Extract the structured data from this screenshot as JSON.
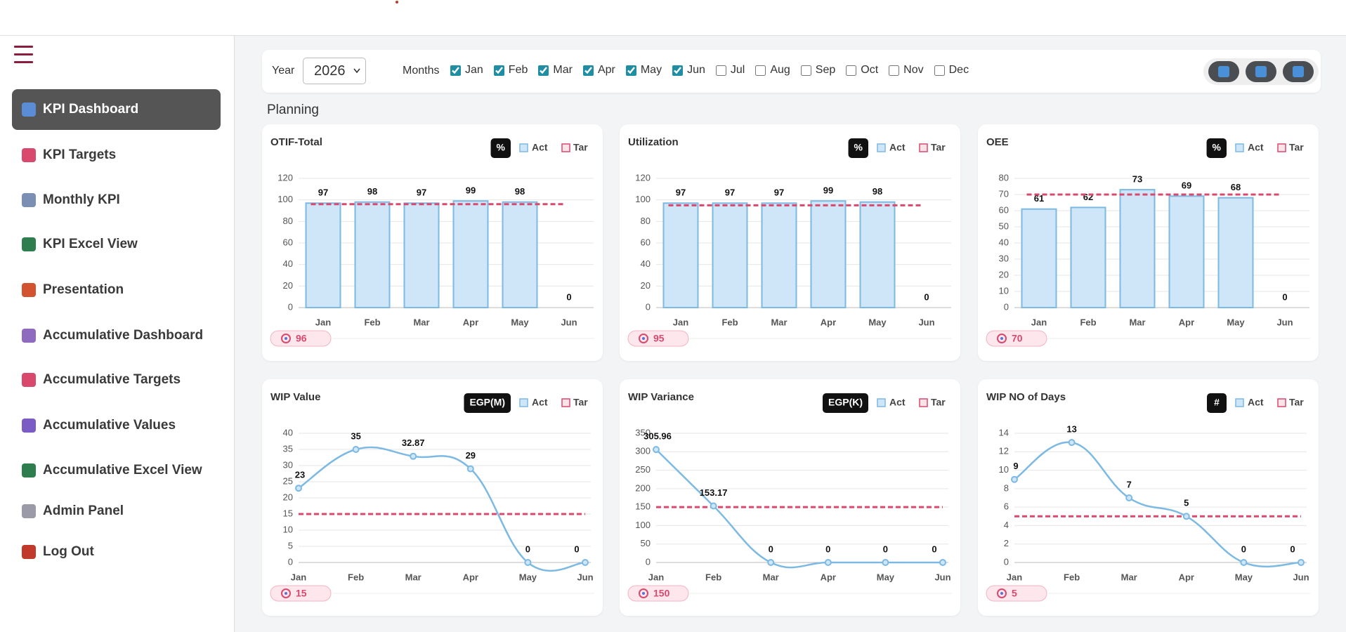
{
  "sidebar": {
    "items": [
      {
        "label": "KPI Dashboard",
        "active": true
      },
      {
        "label": "KPI Targets",
        "active": false
      },
      {
        "label": "Monthly KPI",
        "active": false
      },
      {
        "label": "KPI Excel View",
        "active": false
      },
      {
        "label": "Presentation",
        "active": false
      },
      {
        "label": "Accumulative Dashboard",
        "active": false
      },
      {
        "label": "Accumulative Targets",
        "active": false
      },
      {
        "label": "Accumulative Values",
        "active": false
      },
      {
        "label": "Accumulative Excel View",
        "active": false
      },
      {
        "label": "Admin Panel",
        "active": false
      },
      {
        "label": "Log Out",
        "active": false
      }
    ]
  },
  "filters": {
    "year_label": "Year",
    "year": "2026",
    "months_label": "Months",
    "months": [
      {
        "label": "Jan",
        "checked": true
      },
      {
        "label": "Feb",
        "checked": true
      },
      {
        "label": "Mar",
        "checked": true
      },
      {
        "label": "Apr",
        "checked": true
      },
      {
        "label": "May",
        "checked": true
      },
      {
        "label": "Jun",
        "checked": true
      },
      {
        "label": "Jul",
        "checked": false
      },
      {
        "label": "Aug",
        "checked": false
      },
      {
        "label": "Sep",
        "checked": false
      },
      {
        "label": "Oct",
        "checked": false
      },
      {
        "label": "Nov",
        "checked": false
      },
      {
        "label": "Dec",
        "checked": false
      }
    ]
  },
  "section_title": "Planning",
  "chart_data": [
    {
      "type": "bar",
      "title": "OTIF-Total",
      "unit": "%",
      "categories": [
        "Jan",
        "Feb",
        "Mar",
        "Apr",
        "May",
        "Jun"
      ],
      "series": [
        {
          "name": "Act",
          "color": "#7cb9e3",
          "values": [
            97,
            98,
            97,
            99,
            98,
            0
          ]
        }
      ],
      "target": {
        "name": "Tar",
        "color": "#d9496e",
        "value": 96
      },
      "ylim": [
        0,
        120
      ],
      "yticks": [
        0,
        20,
        40,
        60,
        80,
        100,
        120
      ]
    },
    {
      "type": "bar",
      "title": "Utilization",
      "unit": "%",
      "categories": [
        "Jan",
        "Feb",
        "Mar",
        "Apr",
        "May",
        "Jun"
      ],
      "series": [
        {
          "name": "Act",
          "color": "#7cb9e3",
          "values": [
            97,
            97,
            97,
            99,
            98,
            0
          ]
        }
      ],
      "target": {
        "name": "Tar",
        "color": "#d9496e",
        "value": 95
      },
      "ylim": [
        0,
        120
      ],
      "yticks": [
        0,
        20,
        40,
        60,
        80,
        100,
        120
      ]
    },
    {
      "type": "bar",
      "title": "OEE",
      "unit": "%",
      "categories": [
        "Jan",
        "Feb",
        "Mar",
        "Apr",
        "May",
        "Jun"
      ],
      "series": [
        {
          "name": "Act",
          "color": "#7cb9e3",
          "values": [
            61,
            62,
            73,
            69,
            68,
            0
          ]
        }
      ],
      "target": {
        "name": "Tar",
        "color": "#d9496e",
        "value": 70
      },
      "ylim": [
        0,
        80
      ],
      "yticks": [
        0,
        10,
        20,
        30,
        40,
        50,
        60,
        70,
        80
      ]
    },
    {
      "type": "line",
      "title": "WIP Value",
      "unit": "EGP(M)",
      "categories": [
        "Jan",
        "Feb",
        "Mar",
        "Apr",
        "May",
        "Jun"
      ],
      "series": [
        {
          "name": "Act",
          "color": "#7cb9e3",
          "values": [
            23,
            35,
            32.87,
            29,
            0,
            0
          ]
        }
      ],
      "target": {
        "name": "Tar",
        "color": "#d9496e",
        "value": 15
      },
      "ylim": [
        0,
        40
      ],
      "yticks": [
        0,
        5,
        10,
        15,
        20,
        25,
        30,
        35,
        40
      ]
    },
    {
      "type": "line",
      "title": "WIP Variance",
      "unit": "EGP(K)",
      "categories": [
        "Jan",
        "Feb",
        "Mar",
        "Apr",
        "May",
        "Jun"
      ],
      "series": [
        {
          "name": "Act",
          "color": "#7cb9e3",
          "values": [
            305.96,
            153.17,
            0,
            0,
            0,
            0
          ]
        }
      ],
      "target": {
        "name": "Tar",
        "color": "#d9496e",
        "value": 150
      },
      "ylim": [
        0,
        350
      ],
      "yticks": [
        0,
        50,
        100,
        150,
        200,
        250,
        300,
        350
      ]
    },
    {
      "type": "line",
      "title": "WIP NO of Days",
      "unit": "#",
      "categories": [
        "Jan",
        "Feb",
        "Mar",
        "Apr",
        "May",
        "Jun"
      ],
      "series": [
        {
          "name": "Act",
          "color": "#7cb9e3",
          "values": [
            9,
            13,
            7,
            5,
            0,
            0
          ]
        }
      ],
      "target": {
        "name": "Tar",
        "color": "#d9496e",
        "value": 5
      },
      "ylim": [
        0,
        14
      ],
      "yticks": [
        0,
        2,
        4,
        6,
        8,
        10,
        12,
        14
      ]
    }
  ]
}
